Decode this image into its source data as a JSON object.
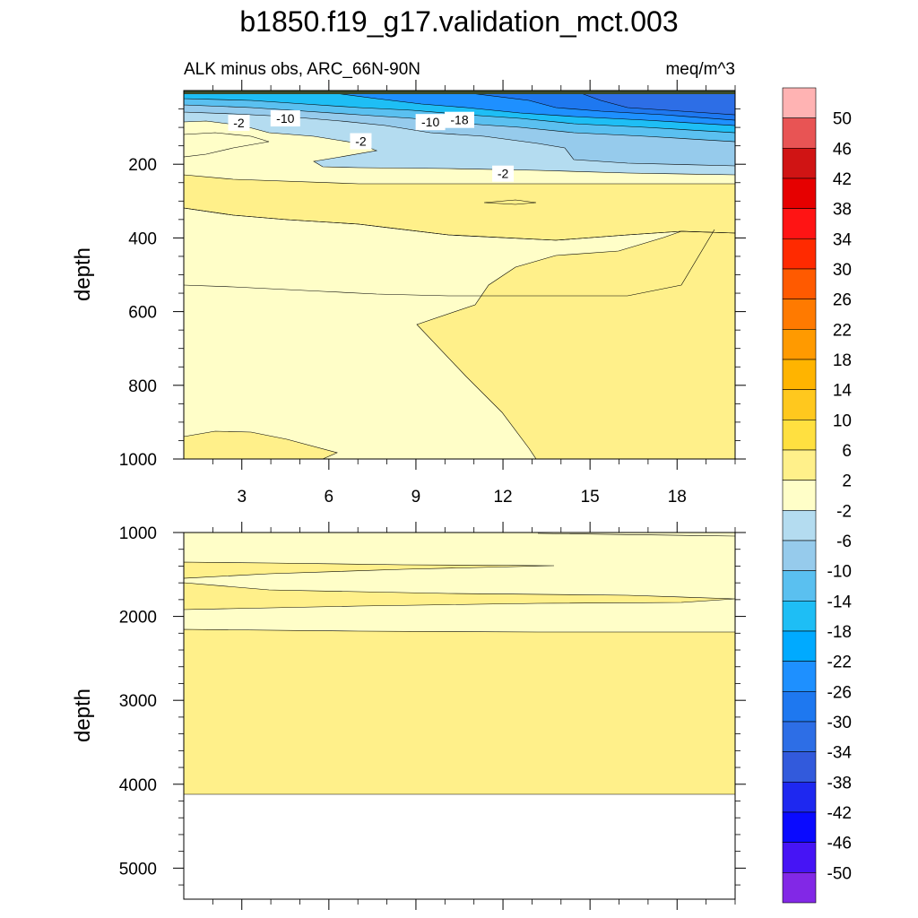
{
  "title": "b1850.f19_g17.validation_mct.003",
  "chart_data": [
    {
      "type": "heatmap",
      "panel": "upper",
      "left_label": "ALK minus obs, ARC_66N-90N",
      "right_label": "meq/m^3",
      "ylabel": "depth",
      "xlabel": "",
      "xlim": [
        1,
        20
      ],
      "ylim": [
        1000,
        0
      ],
      "x_ticks": [
        3,
        6,
        9,
        12,
        15,
        18
      ],
      "x_ticks_text": [
        "3",
        "6",
        "9",
        "12",
        "15",
        "18"
      ],
      "y_ticks": [
        200,
        400,
        600,
        800,
        1000
      ],
      "y_ticks_text": [
        "200",
        "400",
        "600",
        "800",
        "1000"
      ],
      "contour_labels": [
        {
          "text": "-2",
          "x": 2.9,
          "y": 90
        },
        {
          "text": "-10",
          "x": 4.5,
          "y": 78
        },
        {
          "text": "-10",
          "x": 9.5,
          "y": 88
        },
        {
          "text": "-18",
          "x": 10.5,
          "y": 82
        },
        {
          "text": "-2",
          "x": 7.1,
          "y": 140
        },
        {
          "text": "-2",
          "x": 12,
          "y": 228
        }
      ]
    },
    {
      "type": "heatmap",
      "panel": "lower",
      "ylabel": "depth",
      "xlabel": "",
      "xlim": [
        1,
        20
      ],
      "ylim": [
        5370,
        1000
      ],
      "y_ticks": [
        1000,
        2000,
        3000,
        4000,
        5000
      ],
      "y_ticks_text": [
        "1000",
        "2000",
        "3000",
        "4000",
        "5000"
      ],
      "data_bottom": 4120
    }
  ],
  "colorbar": {
    "levels": [
      "50",
      "46",
      "42",
      "38",
      "34",
      "30",
      "26",
      "22",
      "18",
      "14",
      "10",
      "6",
      "2",
      "-2",
      "-6",
      "-10",
      "-14",
      "-18",
      "-22",
      "-26",
      "-30",
      "-34",
      "-38",
      "-42",
      "-46",
      "-50"
    ],
    "colors": [
      "#ffb3b3",
      "#e85454",
      "#d01414",
      "#e60000",
      "#ff1414",
      "#ff2a00",
      "#ff5a00",
      "#ff7a00",
      "#ff9a00",
      "#ffb400",
      "#ffc81e",
      "#ffe040",
      "#fff08a",
      "#fffec8",
      "#b4dcf0",
      "#96cbec",
      "#5ac0f0",
      "#1ebef5",
      "#00aaff",
      "#1e90ff",
      "#1e78f0",
      "#2d6ee6",
      "#325adc",
      "#1e28f0",
      "#0a0aff",
      "#4614f5",
      "#8228e6"
    ]
  }
}
